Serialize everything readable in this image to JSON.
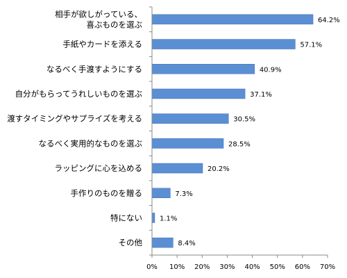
{
  "chart_data": {
    "type": "bar",
    "orientation": "horizontal",
    "categories": [
      [
        "相手が欲しがっている、",
        "喜ぶものを選ぶ"
      ],
      [
        "手紙やカードを添える"
      ],
      [
        "なるべく手渡すようにする"
      ],
      [
        "自分がもらってうれしいものを選ぶ"
      ],
      [
        "渡すタイミングやサプライズを考える"
      ],
      [
        "なるべく実用的なものを選ぶ"
      ],
      [
        "ラッピングに心を込める"
      ],
      [
        "手作りのものを贈る"
      ],
      [
        "特にない"
      ],
      [
        "その他"
      ]
    ],
    "values": [
      64.2,
      57.1,
      40.9,
      37.1,
      30.5,
      28.5,
      20.2,
      7.3,
      1.1,
      8.4
    ],
    "value_labels": [
      "64.2%",
      "57.1%",
      "40.9%",
      "37.1%",
      "30.5%",
      "28.5%",
      "20.2%",
      "7.3%",
      "1.1%",
      "8.4%"
    ],
    "xlim": [
      0,
      70
    ],
    "x_ticks": [
      0,
      10,
      20,
      30,
      40,
      50,
      60,
      70
    ],
    "x_tick_labels": [
      "0%",
      "10%",
      "20%",
      "30%",
      "40%",
      "50%",
      "60%",
      "70%"
    ],
    "title": "",
    "xlabel": "",
    "ylabel": "",
    "grid": false,
    "legend": "none",
    "bar_color": "#5b8fd4",
    "bar_border_color": "#3f6fb5",
    "axis_color": "#888888"
  }
}
